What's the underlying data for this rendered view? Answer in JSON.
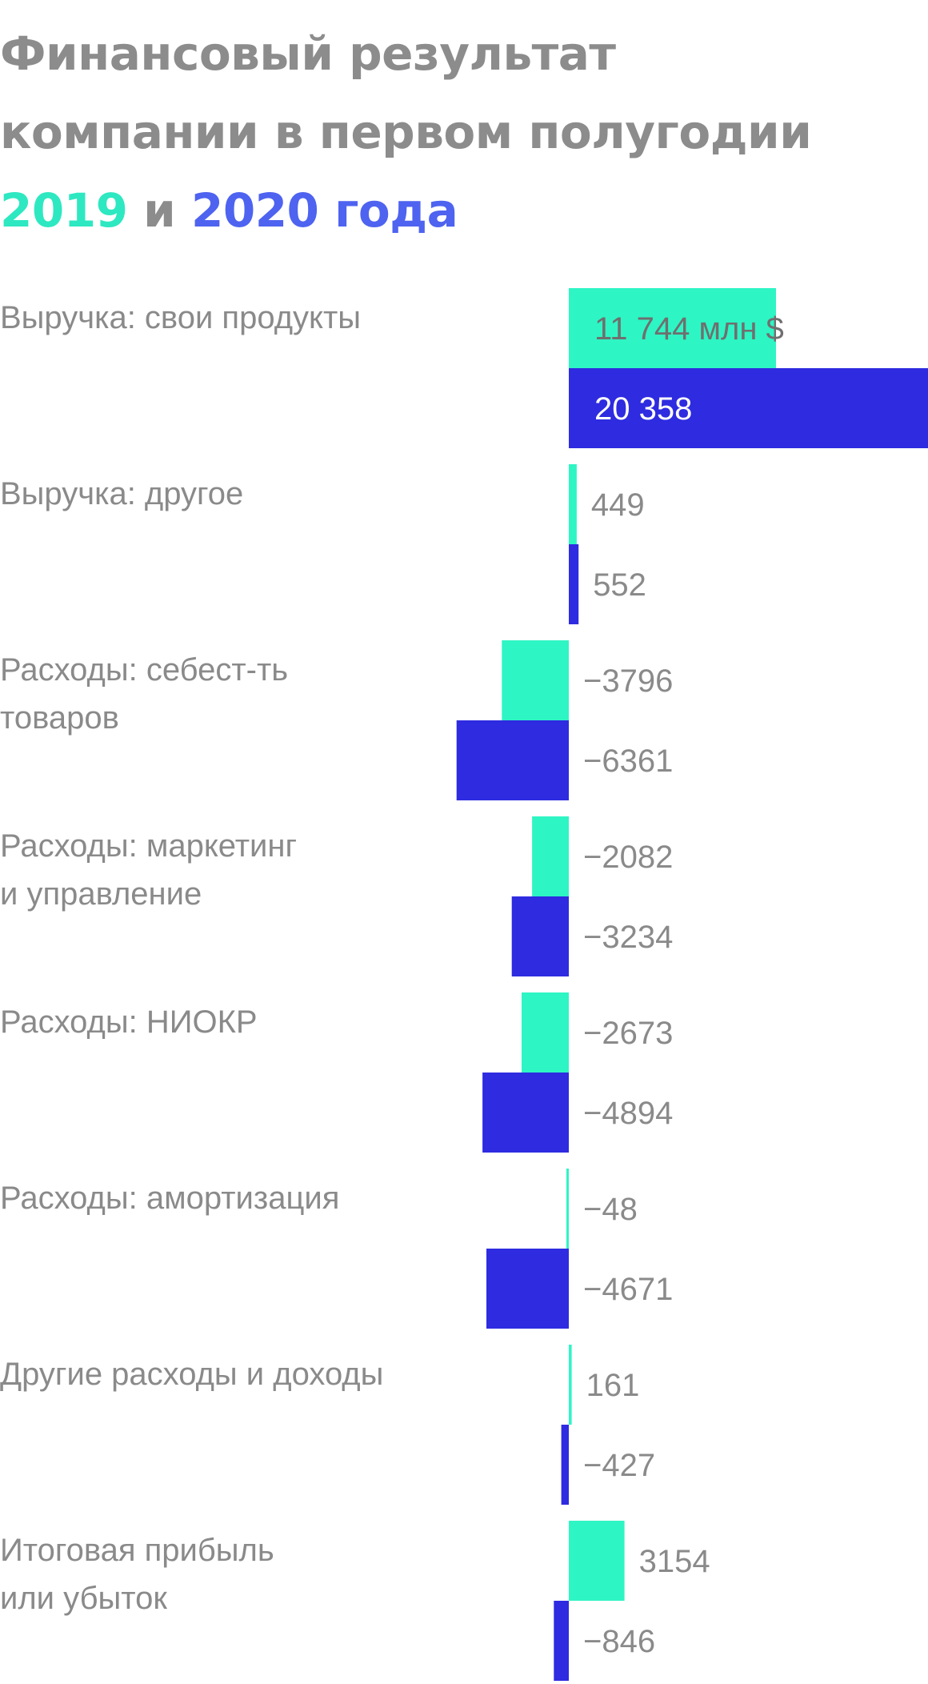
{
  "title": {
    "line1": "Финансовый результат",
    "line2": "компании в первом полугодии",
    "year1": "2019",
    "conj": "и",
    "year2": "2020 года"
  },
  "colors": {
    "series_2019": "#2ef5c4",
    "series_2020": "#2e2be0",
    "title_gray": "#8c8c8c",
    "year_2019": "#2ee8c1",
    "year_2020": "#4e63f0",
    "label_gray": "#8a8a8a"
  },
  "chart_data": {
    "type": "bar",
    "orientation": "horizontal",
    "unit_label": "млн $",
    "categories": [
      [
        "Выручка: свои продукты"
      ],
      [
        "Выручка: другое"
      ],
      [
        "Расходы: себест-ть",
        "товаров"
      ],
      [
        "Расходы: маркетинг",
        "и управление"
      ],
      [
        "Расходы: НИОКР"
      ],
      [
        "Расходы: амортизация"
      ],
      [
        "Другие расходы и доходы"
      ],
      [
        "Итоговая прибыль",
        "или убыток"
      ]
    ],
    "series": [
      {
        "values": [
          11744,
          449,
          -3796,
          -2082,
          -2673,
          -48,
          161,
          3154
        ]
      },
      {
        "values": [
          20358,
          552,
          -6361,
          -3234,
          -4894,
          -4671,
          -427,
          -846
        ]
      }
    ],
    "value_labels": [
      [
        "11 744 млн $",
        "449",
        "−3796",
        "−2082",
        "−2673",
        "−48",
        "161",
        "3154"
      ],
      [
        "20 358",
        "552",
        "−6361",
        "−3234",
        "−4894",
        "−4671",
        "−427",
        "−846"
      ]
    ]
  }
}
